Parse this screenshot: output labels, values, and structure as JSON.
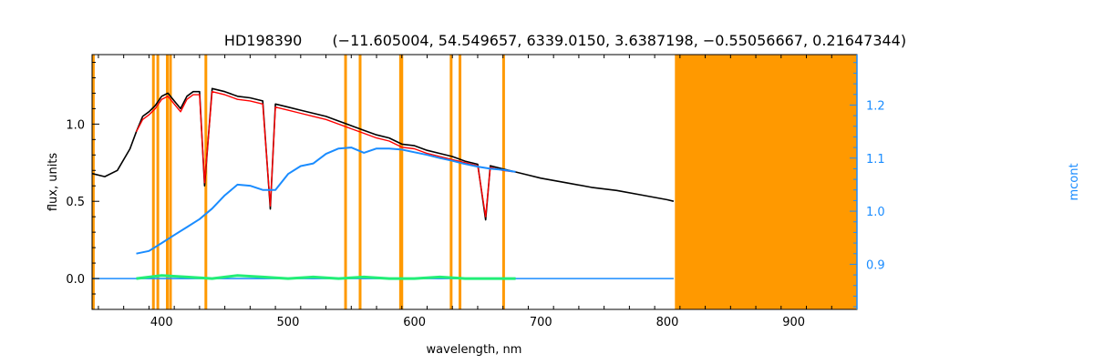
{
  "chart_data": {
    "type": "line",
    "title_object": "HD198390",
    "title_params": "(−11.605004, 54.549657, 6339.0150, 3.6387198, −0.55056667, 0.21647344)",
    "xlabel": "wavelength, nm",
    "ylabel": "flux, units",
    "y2label": "mcont",
    "xlim": [
      345,
      950
    ],
    "ylim": [
      -0.2,
      1.45
    ],
    "y2lim": [
      0.815,
      1.295
    ],
    "xticks": [
      400,
      500,
      600,
      700,
      800,
      900
    ],
    "xtick_labels": [
      "400",
      "500",
      "600",
      "700",
      "800",
      "900"
    ],
    "yticks": [
      0.0,
      0.5,
      1.0
    ],
    "ytick_labels": [
      "0.0",
      "0.5",
      "1.0"
    ],
    "y2ticks": [
      0.9,
      1.0,
      1.1,
      1.2
    ],
    "y2tick_labels": [
      "0.9",
      "1.0",
      "1.1",
      "1.2"
    ],
    "colors": {
      "observed": "#000000",
      "model": "#ff0000",
      "residual": "#22ee77",
      "continuum": "#1a8cff",
      "mask": "#ff9900",
      "right_axis": "#1a8cff"
    },
    "masked_lines_nm": [
      346,
      393.5,
      397,
      404.5,
      407,
      435,
      545.5,
      557,
      589,
      590,
      629,
      636,
      670.5
    ],
    "masked_region_nm": [
      806,
      950
    ],
    "series": [
      {
        "key": "observed",
        "x": [
          345,
          355,
          365,
          375,
          380,
          385,
          390,
          395,
          400,
          405,
          410,
          415,
          420,
          425,
          430,
          434,
          440,
          450,
          460,
          470,
          480,
          486,
          490,
          500,
          510,
          520,
          530,
          540,
          550,
          560,
          570,
          580,
          590,
          600,
          610,
          620,
          630,
          640,
          650,
          656.3,
          660,
          670,
          680,
          690,
          700,
          720,
          740,
          760,
          780,
          800,
          805
        ],
        "y": [
          0.68,
          0.66,
          0.7,
          0.84,
          0.95,
          1.05,
          1.08,
          1.12,
          1.18,
          1.2,
          1.15,
          1.1,
          1.18,
          1.21,
          1.21,
          0.6,
          1.23,
          1.21,
          1.18,
          1.17,
          1.15,
          0.45,
          1.13,
          1.11,
          1.09,
          1.07,
          1.05,
          1.02,
          0.99,
          0.96,
          0.93,
          0.91,
          0.87,
          0.86,
          0.83,
          0.81,
          0.79,
          0.76,
          0.74,
          0.38,
          0.73,
          0.71,
          0.69,
          0.67,
          0.65,
          0.62,
          0.59,
          0.57,
          0.54,
          0.51,
          0.5
        ]
      },
      {
        "key": "model",
        "x": [
          380,
          385,
          390,
          395,
          400,
          405,
          410,
          415,
          420,
          425,
          430,
          434,
          440,
          450,
          460,
          470,
          480,
          486,
          490,
          500,
          510,
          520,
          530,
          540,
          550,
          560,
          570,
          580,
          590,
          600,
          610,
          620,
          630,
          640,
          650,
          656.3,
          660,
          670,
          680
        ],
        "y": [
          0.95,
          1.03,
          1.06,
          1.1,
          1.16,
          1.18,
          1.13,
          1.08,
          1.16,
          1.19,
          1.19,
          0.62,
          1.21,
          1.19,
          1.16,
          1.15,
          1.13,
          0.47,
          1.11,
          1.09,
          1.07,
          1.05,
          1.03,
          1.0,
          0.97,
          0.94,
          0.91,
          0.89,
          0.85,
          0.84,
          0.81,
          0.79,
          0.77,
          0.75,
          0.73,
          0.4,
          0.72,
          0.7,
          0.69
        ]
      },
      {
        "key": "residual",
        "x": [
          380,
          400,
          420,
          440,
          460,
          480,
          500,
          520,
          540,
          560,
          580,
          600,
          620,
          640,
          660,
          680
        ],
        "y": [
          0.0,
          0.02,
          0.01,
          0.0,
          0.02,
          0.01,
          0.0,
          0.01,
          0.0,
          0.01,
          0.0,
          0.0,
          0.01,
          0.0,
          0.0,
          0.0
        ]
      },
      {
        "key": "continuum",
        "axis": "right",
        "x": [
          380,
          390,
          400,
          410,
          420,
          430,
          440,
          450,
          460,
          470,
          480,
          490,
          500,
          510,
          520,
          530,
          540,
          550,
          560,
          570,
          580,
          590,
          600,
          610,
          620,
          630,
          640,
          650,
          660,
          670,
          680
        ],
        "y": [
          0.92,
          0.925,
          0.94,
          0.955,
          0.97,
          0.985,
          1.005,
          1.03,
          1.05,
          1.048,
          1.04,
          1.04,
          1.07,
          1.085,
          1.09,
          1.108,
          1.118,
          1.12,
          1.11,
          1.118,
          1.118,
          1.116,
          1.111,
          1.106,
          1.1,
          1.095,
          1.089,
          1.084,
          1.08,
          1.078,
          1.074
        ]
      },
      {
        "key": "continuum_baseline",
        "x": [
          345,
          805
        ],
        "y": [
          0.0,
          0.0
        ]
      }
    ]
  }
}
